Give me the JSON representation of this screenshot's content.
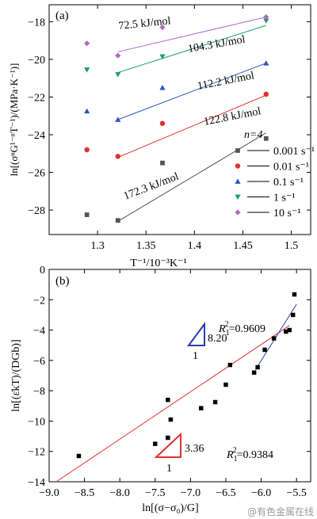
{
  "chart_data": [
    {
      "panel": "(a)",
      "type": "scatter",
      "xlabel": "T⁻¹/10⁻³K⁻¹",
      "ylabel": "ln[(σⁿG¹⁻ⁿT⁻¹)/(MPa·K⁻¹)]",
      "xlim": [
        1.25,
        1.52
      ],
      "ylim": [
        -29.3,
        -17.1
      ],
      "xticks": [
        1.3,
        1.35,
        1.4,
        1.45,
        1.5
      ],
      "xtick_labels": [
        "1.3",
        "1.35",
        "1.4",
        "1.45",
        "1.5"
      ],
      "yticks": [
        -28,
        -26,
        -24,
        -22,
        -20,
        -18
      ],
      "ytick_labels": [
        "−28",
        "−26",
        "−24",
        "−22",
        "−20",
        "−18"
      ],
      "legend": {
        "title": "n=4",
        "position": "right"
      },
      "series": [
        {
          "name": "0.001 s⁻¹",
          "marker": "square",
          "color": "#555555",
          "x": [
            1.321,
            1.289,
            1.367,
            1.474
          ],
          "y": [
            -28.55,
            -28.25,
            -25.5,
            -24.2
          ],
          "fit": {
            "x": [
              1.321,
              1.474
            ],
            "y": [
              -28.6,
              -23.9
            ]
          },
          "annotation": "172.3 kJ/mol"
        },
        {
          "name": "0.01 s⁻¹",
          "marker": "circle",
          "color": "#e03030",
          "x": [
            1.321,
            1.289,
            1.367,
            1.474
          ],
          "y": [
            -25.15,
            -24.8,
            -23.4,
            -21.85
          ],
          "fit": {
            "x": [
              1.321,
              1.474
            ],
            "y": [
              -25.2,
              -21.9
            ]
          },
          "annotation": "122.8 kJ/mol"
        },
        {
          "name": "0.1 s⁻¹",
          "marker": "triangle-up",
          "color": "#2a56c6",
          "x": [
            1.321,
            1.289,
            1.367,
            1.474
          ],
          "y": [
            -23.2,
            -22.75,
            -21.5,
            -20.2
          ],
          "fit": {
            "x": [
              1.321,
              1.474
            ],
            "y": [
              -23.2,
              -20.2
            ]
          },
          "annotation": "112.2 kJ/mol"
        },
        {
          "name": "1 s⁻¹",
          "marker": "triangle-down",
          "color": "#1e9e66",
          "x": [
            1.321,
            1.289,
            1.367,
            1.474
          ],
          "y": [
            -20.8,
            -20.55,
            -19.85,
            -17.95
          ],
          "fit": {
            "x": [
              1.321,
              1.474
            ],
            "y": [
              -20.7,
              -18.2
            ]
          },
          "annotation": "104.3 kJ/mol"
        },
        {
          "name": "10 s⁻¹",
          "marker": "diamond",
          "color": "#b06ac8",
          "x": [
            1.321,
            1.289,
            1.367,
            1.474
          ],
          "y": [
            -19.8,
            -19.15,
            -18.3,
            -17.75
          ],
          "fit": {
            "x": [
              1.321,
              1.474
            ],
            "y": [
              -19.6,
              -17.75
            ]
          },
          "annotation": "72.5 kJ/mol"
        }
      ]
    },
    {
      "panel": "(b)",
      "type": "scatter",
      "xlabel": "ln[(σ−σ₀)/G]",
      "ylabel": "ln[(ε̇kT)/(DGb)]",
      "xlim": [
        -9.0,
        -5.3
      ],
      "ylim": [
        -14,
        0
      ],
      "xticks": [
        -9.0,
        -8.5,
        -8.0,
        -7.5,
        -7.0,
        -6.5,
        -6.0,
        -5.5
      ],
      "xtick_labels": [
        "−9.0",
        "−8.5",
        "−8.0",
        "−7.5",
        "−7.0",
        "−6.5",
        "−6.0",
        "−5.5"
      ],
      "yticks": [
        0,
        -2,
        -4,
        -6,
        -8,
        -10,
        -12,
        -14
      ],
      "ytick_labels": [
        "0",
        "−2",
        "−4",
        "−6",
        "−8",
        "−10",
        "−12",
        "−14"
      ],
      "series": [
        {
          "marker": "square",
          "color": "#000000",
          "x": [
            -8.58,
            -7.5,
            -7.32,
            -7.28,
            -7.32,
            -6.85,
            -6.65,
            -6.5,
            -6.44,
            -6.1,
            -6.05,
            -5.95,
            -5.82,
            -5.65,
            -5.6,
            -5.55,
            -5.53
          ],
          "y": [
            -12.3,
            -11.5,
            -11.1,
            -9.9,
            -8.6,
            -9.15,
            -8.75,
            -7.6,
            -6.3,
            -6.8,
            -6.45,
            -5.3,
            -4.55,
            -4.1,
            -4.0,
            -3.0,
            -1.65
          ]
        }
      ],
      "fits": [
        {
          "color": "#e03030",
          "x": [
            -8.9,
            -5.6
          ],
          "y": [
            -14.0,
            -3.7
          ],
          "label_main": "R",
          "label_sub": "1",
          "label_sup": "2",
          "label_value": "=0.9384"
        },
        {
          "color": "#2a3ab0",
          "x": [
            -6.08,
            -5.5
          ],
          "y": [
            -6.6,
            -2.3
          ],
          "label_main": "R",
          "label_sub": "1",
          "label_sup": "2",
          "label_value": "=0.9609"
        }
      ],
      "slope_triangles": [
        {
          "color": "#2a3ab0",
          "slope": "8.20",
          "run": "1"
        },
        {
          "color": "#e03030",
          "slope": "3.36",
          "run": "1"
        }
      ]
    }
  ],
  "watermark": "@有色金属在线"
}
